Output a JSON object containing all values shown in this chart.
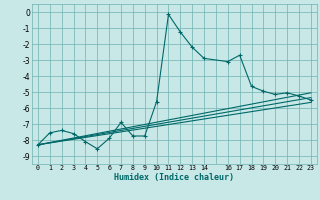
{
  "xlabel": "Humidex (Indice chaleur)",
  "bg_color": "#c8e8e8",
  "grid_color": "#70b0b0",
  "line_color": "#006868",
  "xlim": [
    -0.5,
    23.5
  ],
  "ylim": [
    -9.5,
    0.5
  ],
  "yticks": [
    0,
    -1,
    -2,
    -3,
    -4,
    -5,
    -6,
    -7,
    -8,
    -9
  ],
  "xtick_labels": [
    "0",
    "1",
    "2",
    "3",
    "4",
    "5",
    "6",
    "7",
    "8",
    "9",
    "10",
    "11",
    "12",
    "13",
    "14",
    "",
    "16",
    "17",
    "18",
    "19",
    "20",
    "21",
    "22",
    "23"
  ],
  "line1_x": [
    0,
    1,
    2,
    3,
    4,
    5,
    6,
    7,
    8,
    9,
    10,
    11,
    12,
    13,
    14,
    16,
    17,
    18,
    19,
    20,
    21,
    22,
    23
  ],
  "line1_y": [
    -8.3,
    -7.55,
    -7.4,
    -7.6,
    -8.1,
    -8.55,
    -7.9,
    -6.9,
    -7.75,
    -7.75,
    -5.6,
    -0.15,
    -1.25,
    -2.2,
    -2.9,
    -3.1,
    -2.7,
    -4.65,
    -4.95,
    -5.15,
    -5.05,
    -5.25,
    -5.5
  ],
  "line2_x": [
    0,
    23
  ],
  "line2_y": [
    -8.3,
    -5.05
  ],
  "line3_x": [
    0,
    23
  ],
  "line3_y": [
    -8.3,
    -5.35
  ],
  "line4_x": [
    0,
    23
  ],
  "line4_y": [
    -8.3,
    -5.65
  ]
}
